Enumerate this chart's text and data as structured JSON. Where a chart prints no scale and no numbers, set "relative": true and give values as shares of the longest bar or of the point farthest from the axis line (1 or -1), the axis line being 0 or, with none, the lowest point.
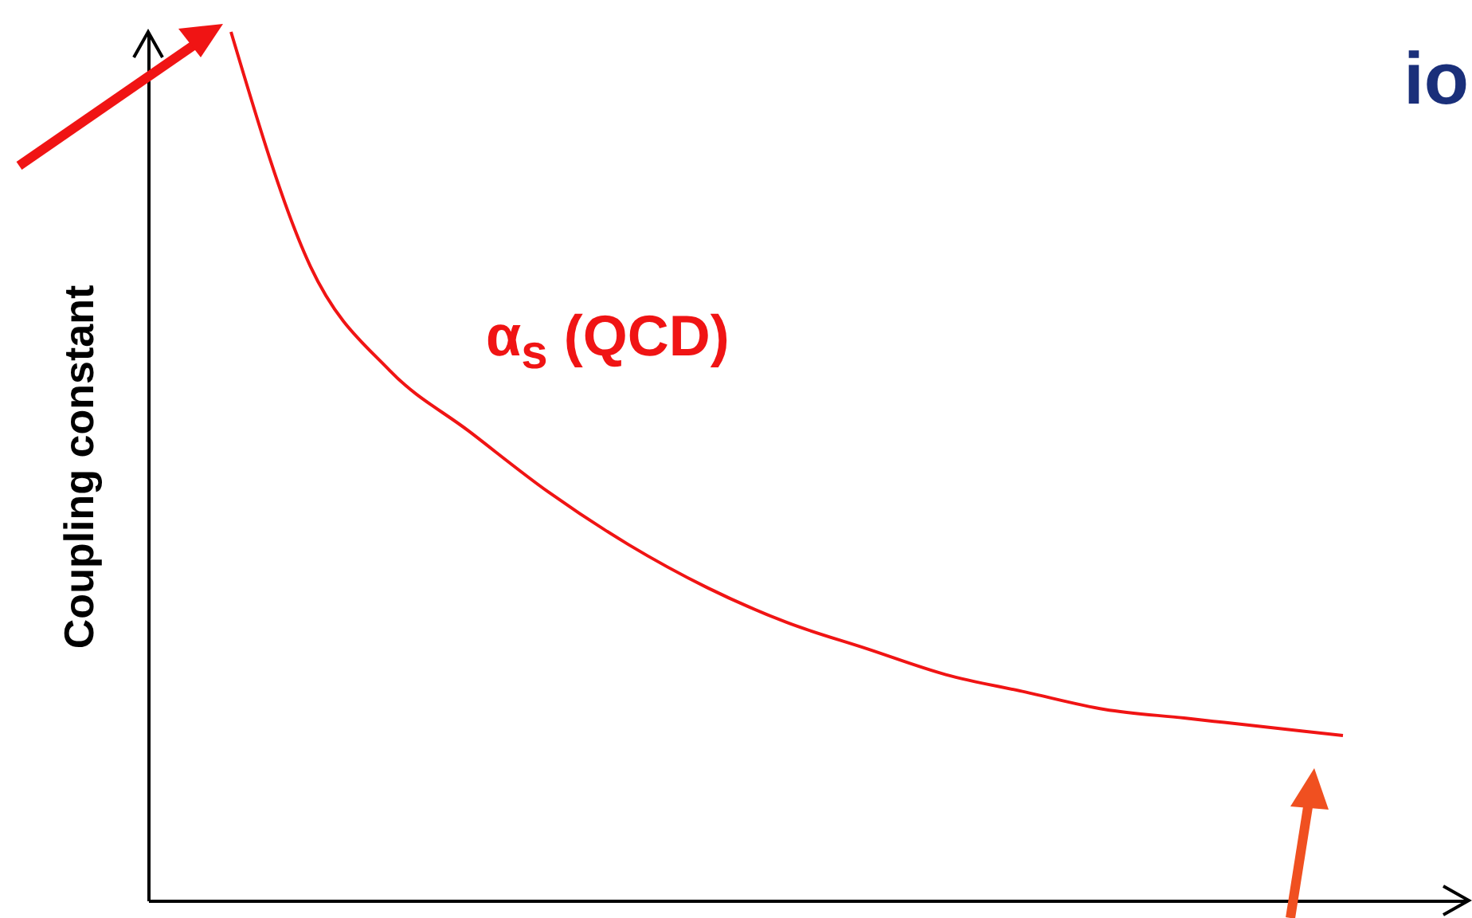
{
  "chart_data": {
    "type": "line",
    "ylabel": "Coupling constant",
    "relative": true,
    "grid": false,
    "marker": "none",
    "line_style": "solid",
    "categories": [
      null,
      null,
      null,
      null,
      null,
      null,
      null,
      null,
      null,
      null,
      null,
      null,
      null,
      null,
      null
    ],
    "series": [
      {
        "name": "α$_{s}$ (QCD)",
        "color": "#f01414",
        "values": [
          1,
          0.73,
          0.61,
          0.54,
          0.47,
          0.41,
          0.36,
          0.32,
          0.29,
          0.26,
          0.24,
          0.22,
          0.21,
          0.2,
          0.19
        ]
      }
    ],
    "annotations": [
      "io"
    ]
  }
}
